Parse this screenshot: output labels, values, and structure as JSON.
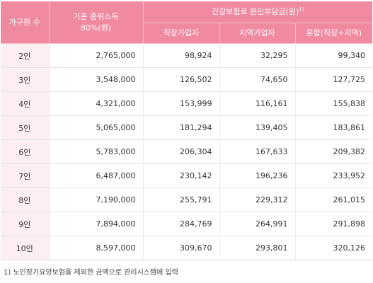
{
  "table": {
    "headers": {
      "household_size": "가구원 수",
      "median_income_line1": "기준 중위소득",
      "median_income_line2": "80%(원)",
      "premium_group": "건강보험료 본인부담금(원)",
      "premium_group_footnote_mark": "1)",
      "employee": "직장가입자",
      "regional": "지역가입자",
      "mixed": "혼합(직장+지역)"
    },
    "rows": [
      {
        "size": "2인",
        "income": "2,765,000",
        "employee": "98,924",
        "regional": "32,295",
        "mixed": "99,340"
      },
      {
        "size": "3인",
        "income": "3,548,000",
        "employee": "126,502",
        "regional": "74,650",
        "mixed": "127,725"
      },
      {
        "size": "4인",
        "income": "4,321,000",
        "employee": "153,999",
        "regional": "116,161",
        "mixed": "155,838"
      },
      {
        "size": "5인",
        "income": "5,065,000",
        "employee": "181,294",
        "regional": "139,405",
        "mixed": "183,861"
      },
      {
        "size": "6인",
        "income": "5,783,000",
        "employee": "206,304",
        "regional": "167,633",
        "mixed": "209,382"
      },
      {
        "size": "7인",
        "income": "6,487,000",
        "employee": "230,142",
        "regional": "196,236",
        "mixed": "233,952"
      },
      {
        "size": "8인",
        "income": "7,190,000",
        "employee": "255,791",
        "regional": "229,312",
        "mixed": "261,015"
      },
      {
        "size": "9인",
        "income": "7,894,000",
        "employee": "284,769",
        "regional": "264,991",
        "mixed": "291,898"
      },
      {
        "size": "10인",
        "income": "8,597,000",
        "employee": "309,670",
        "regional": "293,801",
        "mixed": "320,126"
      }
    ]
  },
  "footnote": "1) 노인장기요양보험을 제외한 금액으로 관리시스템에 입력",
  "colors": {
    "header_bg": "#ef8aa1",
    "label_bg": "#fdeef2"
  }
}
